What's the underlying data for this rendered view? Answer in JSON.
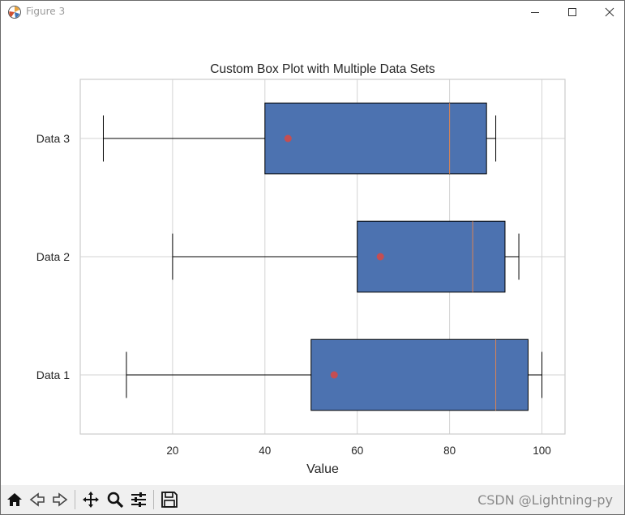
{
  "window": {
    "title": "Figure 3"
  },
  "watermark": "CSDN @Lightning-py",
  "toolbar": {
    "icons": [
      "home-icon",
      "back-icon",
      "forward-icon",
      "pan-icon",
      "zoom-icon",
      "configure-subplots-icon",
      "save-icon"
    ]
  },
  "colors": {
    "box_fill": "#4c72b0",
    "median": "#dd8452",
    "mean": "#c44e52",
    "grid": "#d3d3d3",
    "text": "#262626"
  },
  "chart_data": {
    "type": "box",
    "orientation": "horizontal",
    "title": "Custom Box Plot with Multiple Data Sets",
    "xlabel": "Value",
    "ylabel": "",
    "xlim": [
      0,
      105
    ],
    "xticks": [
      20,
      40,
      60,
      80,
      100
    ],
    "grid": true,
    "categories": [
      "Data 1",
      "Data 2",
      "Data 3"
    ],
    "boxes": [
      {
        "label": "Data 1",
        "whisker_low": 10,
        "q1": 50,
        "median": 90,
        "q3": 97,
        "whisker_high": 100,
        "mean": 55
      },
      {
        "label": "Data 2",
        "whisker_low": 20,
        "q1": 60,
        "median": 85,
        "q3": 92,
        "whisker_high": 95,
        "mean": 65
      },
      {
        "label": "Data 3",
        "whisker_low": 5,
        "q1": 40,
        "median": 80,
        "q3": 88,
        "whisker_high": 90,
        "mean": 45
      }
    ]
  }
}
